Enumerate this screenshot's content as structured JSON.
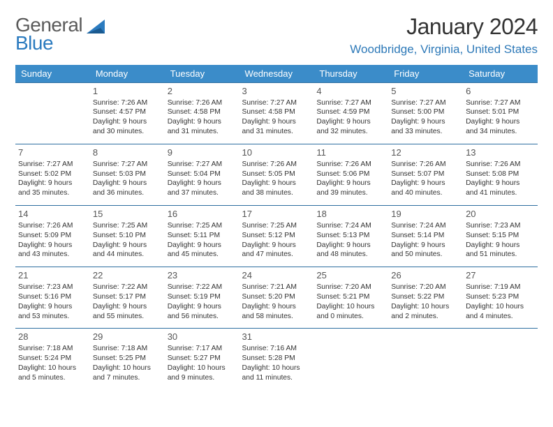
{
  "logo": {
    "text1": "General",
    "text2": "Blue"
  },
  "header": {
    "month_year": "January 2024",
    "location": "Woodbridge, Virginia, United States"
  },
  "colors": {
    "header_bg": "#3b8cc9",
    "header_text": "#ffffff",
    "row_border": "#2d6ea0",
    "location_color": "#2d79b8",
    "logo_gray": "#5a5a5a",
    "logo_blue": "#2b7bbf"
  },
  "day_names": [
    "Sunday",
    "Monday",
    "Tuesday",
    "Wednesday",
    "Thursday",
    "Friday",
    "Saturday"
  ],
  "weeks": [
    [
      null,
      {
        "n": "1",
        "sr": "Sunrise: 7:26 AM",
        "ss": "Sunset: 4:57 PM",
        "d1": "Daylight: 9 hours",
        "d2": "and 30 minutes."
      },
      {
        "n": "2",
        "sr": "Sunrise: 7:26 AM",
        "ss": "Sunset: 4:58 PM",
        "d1": "Daylight: 9 hours",
        "d2": "and 31 minutes."
      },
      {
        "n": "3",
        "sr": "Sunrise: 7:27 AM",
        "ss": "Sunset: 4:58 PM",
        "d1": "Daylight: 9 hours",
        "d2": "and 31 minutes."
      },
      {
        "n": "4",
        "sr": "Sunrise: 7:27 AM",
        "ss": "Sunset: 4:59 PM",
        "d1": "Daylight: 9 hours",
        "d2": "and 32 minutes."
      },
      {
        "n": "5",
        "sr": "Sunrise: 7:27 AM",
        "ss": "Sunset: 5:00 PM",
        "d1": "Daylight: 9 hours",
        "d2": "and 33 minutes."
      },
      {
        "n": "6",
        "sr": "Sunrise: 7:27 AM",
        "ss": "Sunset: 5:01 PM",
        "d1": "Daylight: 9 hours",
        "d2": "and 34 minutes."
      }
    ],
    [
      {
        "n": "7",
        "sr": "Sunrise: 7:27 AM",
        "ss": "Sunset: 5:02 PM",
        "d1": "Daylight: 9 hours",
        "d2": "and 35 minutes."
      },
      {
        "n": "8",
        "sr": "Sunrise: 7:27 AM",
        "ss": "Sunset: 5:03 PM",
        "d1": "Daylight: 9 hours",
        "d2": "and 36 minutes."
      },
      {
        "n": "9",
        "sr": "Sunrise: 7:27 AM",
        "ss": "Sunset: 5:04 PM",
        "d1": "Daylight: 9 hours",
        "d2": "and 37 minutes."
      },
      {
        "n": "10",
        "sr": "Sunrise: 7:26 AM",
        "ss": "Sunset: 5:05 PM",
        "d1": "Daylight: 9 hours",
        "d2": "and 38 minutes."
      },
      {
        "n": "11",
        "sr": "Sunrise: 7:26 AM",
        "ss": "Sunset: 5:06 PM",
        "d1": "Daylight: 9 hours",
        "d2": "and 39 minutes."
      },
      {
        "n": "12",
        "sr": "Sunrise: 7:26 AM",
        "ss": "Sunset: 5:07 PM",
        "d1": "Daylight: 9 hours",
        "d2": "and 40 minutes."
      },
      {
        "n": "13",
        "sr": "Sunrise: 7:26 AM",
        "ss": "Sunset: 5:08 PM",
        "d1": "Daylight: 9 hours",
        "d2": "and 41 minutes."
      }
    ],
    [
      {
        "n": "14",
        "sr": "Sunrise: 7:26 AM",
        "ss": "Sunset: 5:09 PM",
        "d1": "Daylight: 9 hours",
        "d2": "and 43 minutes."
      },
      {
        "n": "15",
        "sr": "Sunrise: 7:25 AM",
        "ss": "Sunset: 5:10 PM",
        "d1": "Daylight: 9 hours",
        "d2": "and 44 minutes."
      },
      {
        "n": "16",
        "sr": "Sunrise: 7:25 AM",
        "ss": "Sunset: 5:11 PM",
        "d1": "Daylight: 9 hours",
        "d2": "and 45 minutes."
      },
      {
        "n": "17",
        "sr": "Sunrise: 7:25 AM",
        "ss": "Sunset: 5:12 PM",
        "d1": "Daylight: 9 hours",
        "d2": "and 47 minutes."
      },
      {
        "n": "18",
        "sr": "Sunrise: 7:24 AM",
        "ss": "Sunset: 5:13 PM",
        "d1": "Daylight: 9 hours",
        "d2": "and 48 minutes."
      },
      {
        "n": "19",
        "sr": "Sunrise: 7:24 AM",
        "ss": "Sunset: 5:14 PM",
        "d1": "Daylight: 9 hours",
        "d2": "and 50 minutes."
      },
      {
        "n": "20",
        "sr": "Sunrise: 7:23 AM",
        "ss": "Sunset: 5:15 PM",
        "d1": "Daylight: 9 hours",
        "d2": "and 51 minutes."
      }
    ],
    [
      {
        "n": "21",
        "sr": "Sunrise: 7:23 AM",
        "ss": "Sunset: 5:16 PM",
        "d1": "Daylight: 9 hours",
        "d2": "and 53 minutes."
      },
      {
        "n": "22",
        "sr": "Sunrise: 7:22 AM",
        "ss": "Sunset: 5:17 PM",
        "d1": "Daylight: 9 hours",
        "d2": "and 55 minutes."
      },
      {
        "n": "23",
        "sr": "Sunrise: 7:22 AM",
        "ss": "Sunset: 5:19 PM",
        "d1": "Daylight: 9 hours",
        "d2": "and 56 minutes."
      },
      {
        "n": "24",
        "sr": "Sunrise: 7:21 AM",
        "ss": "Sunset: 5:20 PM",
        "d1": "Daylight: 9 hours",
        "d2": "and 58 minutes."
      },
      {
        "n": "25",
        "sr": "Sunrise: 7:20 AM",
        "ss": "Sunset: 5:21 PM",
        "d1": "Daylight: 10 hours",
        "d2": "and 0 minutes."
      },
      {
        "n": "26",
        "sr": "Sunrise: 7:20 AM",
        "ss": "Sunset: 5:22 PM",
        "d1": "Daylight: 10 hours",
        "d2": "and 2 minutes."
      },
      {
        "n": "27",
        "sr": "Sunrise: 7:19 AM",
        "ss": "Sunset: 5:23 PM",
        "d1": "Daylight: 10 hours",
        "d2": "and 4 minutes."
      }
    ],
    [
      {
        "n": "28",
        "sr": "Sunrise: 7:18 AM",
        "ss": "Sunset: 5:24 PM",
        "d1": "Daylight: 10 hours",
        "d2": "and 5 minutes."
      },
      {
        "n": "29",
        "sr": "Sunrise: 7:18 AM",
        "ss": "Sunset: 5:25 PM",
        "d1": "Daylight: 10 hours",
        "d2": "and 7 minutes."
      },
      {
        "n": "30",
        "sr": "Sunrise: 7:17 AM",
        "ss": "Sunset: 5:27 PM",
        "d1": "Daylight: 10 hours",
        "d2": "and 9 minutes."
      },
      {
        "n": "31",
        "sr": "Sunrise: 7:16 AM",
        "ss": "Sunset: 5:28 PM",
        "d1": "Daylight: 10 hours",
        "d2": "and 11 minutes."
      },
      null,
      null,
      null
    ]
  ]
}
